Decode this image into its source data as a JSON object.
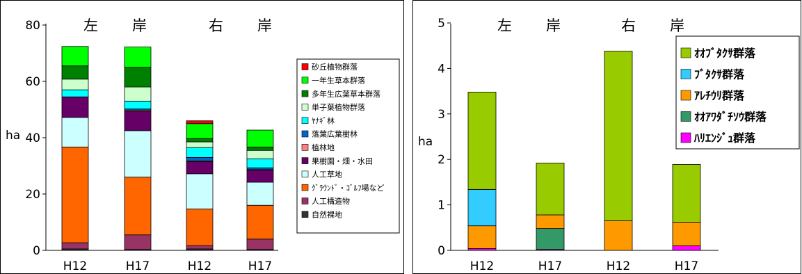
{
  "chart_data": [
    {
      "type": "bar",
      "stacked": true,
      "categories": [
        "H12",
        "H17",
        "H12",
        "H17"
      ],
      "group_labels": [
        "左　岸",
        "右　岸"
      ],
      "ylabel": "ha",
      "ylim": [
        0,
        80
      ],
      "yticks": [
        0,
        20,
        40,
        60,
        80
      ],
      "grid": false,
      "legend_position": "right",
      "series": [
        {
          "name": "自然裸地",
          "color": "#333333",
          "values": [
            0.5,
            0.3,
            0.5,
            0.3
          ]
        },
        {
          "name": "人工構造物",
          "color": "#993366",
          "values": [
            2.2,
            5.2,
            1.2,
            3.7
          ]
        },
        {
          "name": "ｸﾞﾗｳﾝﾄﾞ・ｺﾞﾙﾌ場など",
          "color": "#ff6600",
          "values": [
            34.0,
            20.5,
            13.0,
            12.0
          ]
        },
        {
          "name": "人工草地",
          "color": "#ccffff",
          "values": [
            10.5,
            16.5,
            12.5,
            8.2
          ]
        },
        {
          "name": "果樹園・畑・水田",
          "color": "#660066",
          "values": [
            7.3,
            6.9,
            4.3,
            4.2
          ]
        },
        {
          "name": "植林地",
          "color": "#ff8080",
          "values": [
            0.0,
            0.4,
            0.3,
            0.3
          ]
        },
        {
          "name": "落葉広葉樹林",
          "color": "#0066cc",
          "values": [
            0.0,
            0.4,
            1.2,
            0.6
          ]
        },
        {
          "name": "ﾔﾅｷﾞ林",
          "color": "#00ffff",
          "values": [
            2.5,
            2.8,
            3.5,
            3.2
          ]
        },
        {
          "name": "単子葉植物群落",
          "color": "#ccffcc",
          "values": [
            3.8,
            5.0,
            2.0,
            3.0
          ]
        },
        {
          "name": "多年生広葉草本群落",
          "color": "#008000",
          "values": [
            4.7,
            7.0,
            1.2,
            1.2
          ]
        },
        {
          "name": "一年生草本群落",
          "color": "#00ff00",
          "values": [
            6.9,
            7.2,
            5.3,
            6.0
          ]
        },
        {
          "name": "砂丘植物群落",
          "color": "#ff0000",
          "values": [
            0.0,
            0.0,
            1.0,
            0.0
          ]
        }
      ]
    },
    {
      "type": "bar",
      "stacked": true,
      "categories": [
        "H12",
        "H17",
        "H12",
        "H17"
      ],
      "group_labels": [
        "左　岸",
        "右　岸"
      ],
      "ylabel": "ha",
      "ylim": [
        0,
        5
      ],
      "yticks": [
        0,
        1,
        2,
        3,
        4,
        5
      ],
      "grid": false,
      "legend_position": "top-right",
      "series": [
        {
          "name": "ﾊﾘｴﾝｼﾞｭ群落",
          "color": "#ff00ff",
          "values": [
            0.04,
            0.02,
            0.0,
            0.1
          ]
        },
        {
          "name": "ｵｵｱﾜﾀﾞﾁｿｳ群落",
          "color": "#339966",
          "values": [
            0.0,
            0.46,
            0.0,
            0.0
          ]
        },
        {
          "name": "ｱﾚﾁｳﾘ群落",
          "color": "#ff9900",
          "values": [
            0.5,
            0.3,
            0.65,
            0.52
          ]
        },
        {
          "name": "ﾌﾞﾀｸｻ群落",
          "color": "#33ccff",
          "values": [
            0.8,
            0.0,
            0.0,
            0.0
          ]
        },
        {
          "name": "ｵｵﾌﾞﾀｸｻ群落",
          "color": "#99cc00",
          "values": [
            2.14,
            1.14,
            3.73,
            1.27
          ]
        }
      ]
    }
  ]
}
